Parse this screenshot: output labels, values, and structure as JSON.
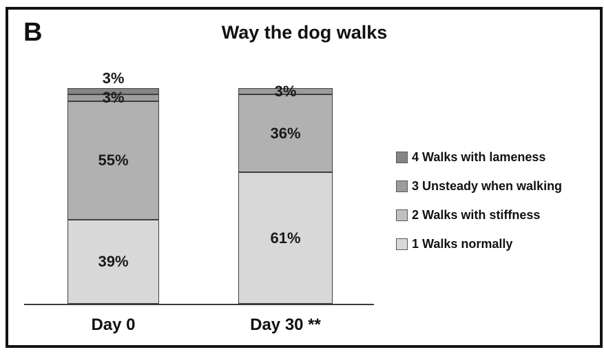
{
  "panel_label": "B",
  "title": "Way the dog walks",
  "chart_data": {
    "type": "bar",
    "subtype": "stacked-percentage",
    "title": "Way the dog walks",
    "categories": [
      "Day 0",
      "Day 30 **"
    ],
    "ylim": [
      0,
      100
    ],
    "value_suffix": "%",
    "grid": false,
    "legend_position": "right",
    "series": [
      {
        "name": "1 Walks normally",
        "color": "#d8d8d8",
        "values": [
          39,
          61
        ]
      },
      {
        "name": "2 Walks with stiffness",
        "color": "#b1b1b1",
        "values": [
          55,
          36
        ]
      },
      {
        "name": "3 Unsteady when walking",
        "color": "#9d9d9d",
        "values": [
          3,
          3
        ]
      },
      {
        "name": "4 Walks with lameness",
        "color": "#858585",
        "values": [
          3,
          0
        ]
      }
    ],
    "bars": [
      {
        "category": "Day 0",
        "segments": [
          {
            "series": "1 Walks normally",
            "value": 39,
            "label": "39%",
            "label_placement": "inside"
          },
          {
            "series": "2 Walks with stiffness",
            "value": 55,
            "label": "55%",
            "label_placement": "inside"
          },
          {
            "series": "3 Unsteady when walking",
            "value": 3,
            "label": "3%",
            "label_placement": "overlap"
          },
          {
            "series": "4 Walks with lameness",
            "value": 3,
            "label": "3%",
            "label_placement": "above"
          }
        ]
      },
      {
        "category": "Day 30 **",
        "segments": [
          {
            "series": "1 Walks normally",
            "value": 61,
            "label": "61%",
            "label_placement": "inside"
          },
          {
            "series": "2 Walks with stiffness",
            "value": 36,
            "label": "36%",
            "label_placement": "inside"
          },
          {
            "series": "3 Unsteady when walking",
            "value": 3,
            "label": "3%",
            "label_placement": "overlap"
          }
        ]
      }
    ]
  },
  "legend": {
    "items": [
      {
        "label": "4 Walks with lameness",
        "color": "#858585"
      },
      {
        "label": "3 Unsteady when walking",
        "color": "#9d9d9d"
      },
      {
        "label": "2 Walks with stiffness",
        "color": "#c0c0c0"
      },
      {
        "label": "1 Walks normally",
        "color": "#d8d8d8"
      }
    ]
  }
}
